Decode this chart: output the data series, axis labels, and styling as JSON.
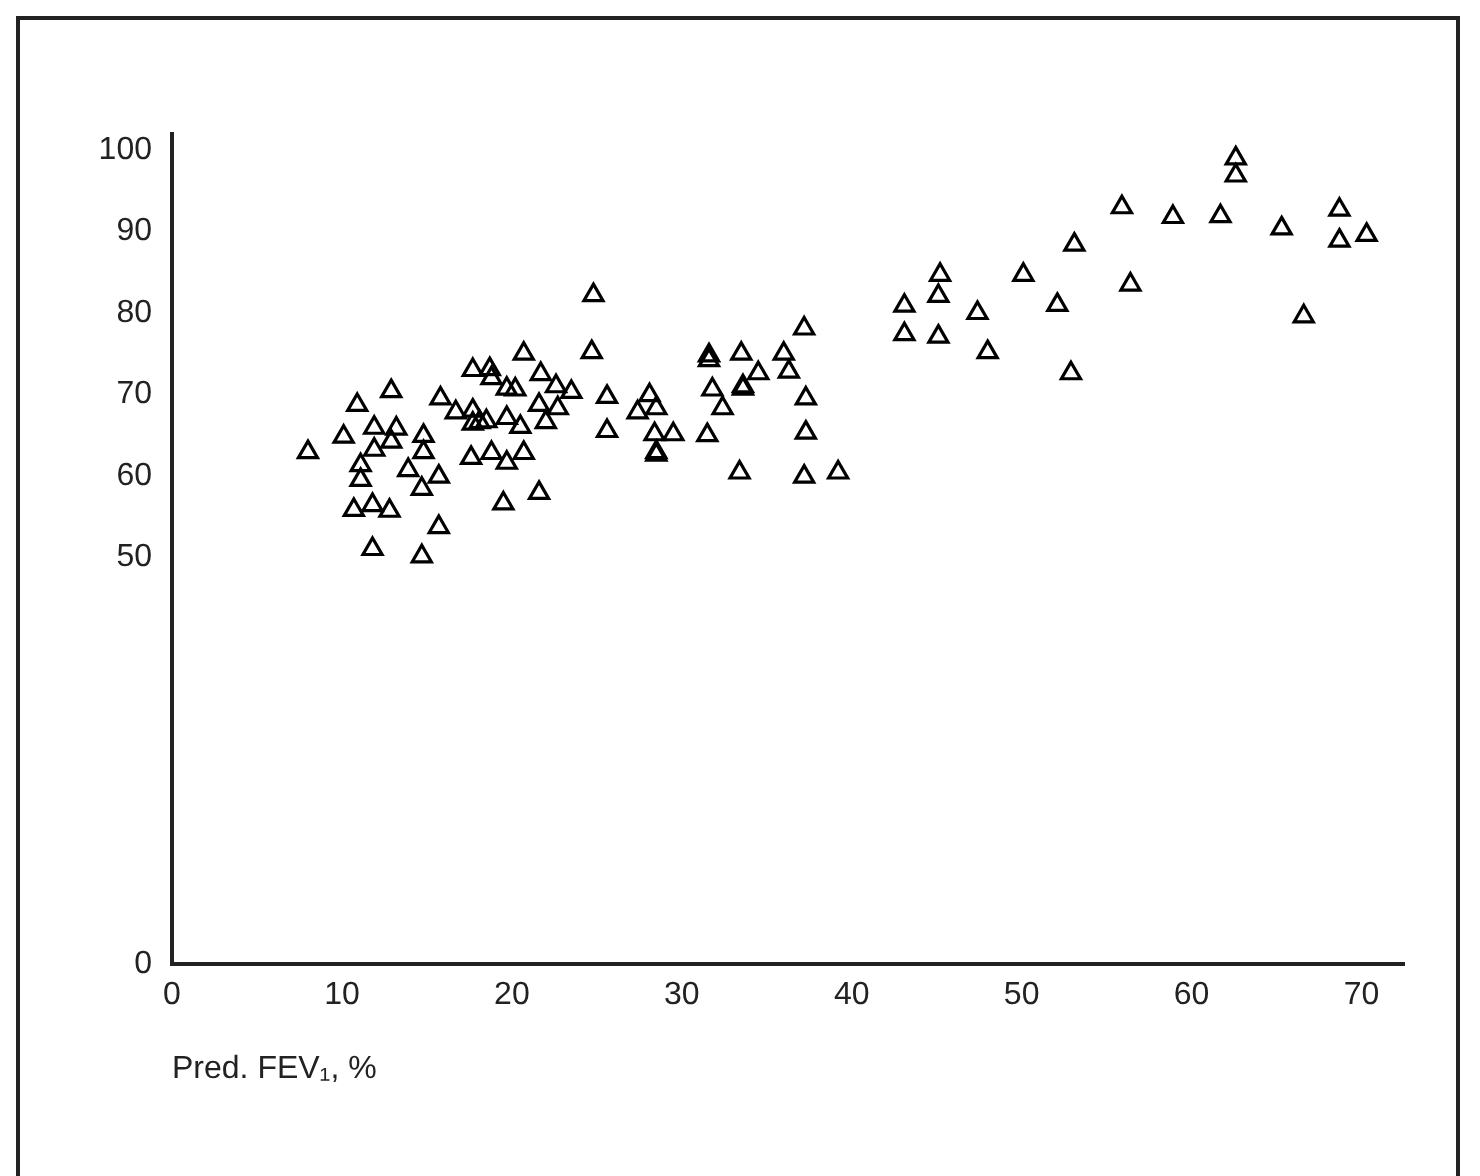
{
  "chart_data": {
    "type": "scatter",
    "xlabel": "Pred. FEV₁, %",
    "marker": "triangle",
    "grid": false,
    "legend": false,
    "xlim": [
      0,
      72.5
    ],
    "xticks": [
      0,
      10,
      20,
      30,
      40,
      50,
      60,
      70
    ],
    "ylim": [
      0,
      102
    ],
    "yticks": [
      0,
      50,
      60,
      70,
      80,
      90,
      100
    ],
    "series": [
      {
        "color": "#000000",
        "x": [
          8.0,
          10.1,
          10.9,
          11.1,
          11.1,
          10.7,
          11.8,
          12.8,
          11.8,
          11.9,
          11.9,
          12.9,
          13.2,
          12.9,
          13.9,
          14.8,
          14.8,
          14.7,
          14.7,
          15.8,
          15.7,
          15.7,
          16.7,
          17.7,
          17.7,
          18.1,
          18.5,
          17.6,
          18.8,
          17.7,
          18.7,
          18.8,
          19.7,
          19.7,
          20.5,
          19.5,
          19.7,
          20.2,
          20.7,
          20.7,
          21.7,
          21.6,
          22.0,
          21.6,
          22.6,
          22.7,
          23.5,
          24.8,
          24.7,
          25.6,
          25.6,
          28.1,
          27.4,
          28.5,
          28.4,
          29.5,
          28.5,
          28.5,
          31.6,
          31.6,
          33.5,
          36.0,
          34.5,
          36.3,
          37.2,
          31.8,
          33.6,
          33.6,
          32.4,
          37.3,
          31.5,
          37.3,
          33.4,
          37.2,
          39.2,
          43.1,
          45.2,
          45.1,
          43.1,
          45.1,
          47.4,
          48.0,
          50.1,
          52.1,
          53.1,
          52.9,
          55.9,
          56.4,
          58.9,
          61.7,
          62.6,
          62.6,
          65.3,
          66.6,
          68.7,
          68.7,
          70.3
        ],
        "values": [
          62.9,
          64.8,
          68.7,
          61.3,
          59.5,
          55.8,
          56.4,
          55.7,
          51.0,
          65.9,
          63.2,
          70.4,
          65.8,
          64.2,
          60.7,
          64.9,
          62.9,
          58.4,
          50.1,
          69.5,
          59.9,
          53.7,
          67.8,
          68.0,
          66.4,
          66.6,
          66.7,
          62.2,
          62.8,
          73.0,
          73.1,
          72.0,
          67.1,
          61.6,
          66.0,
          56.6,
          70.7,
          70.6,
          75.0,
          62.8,
          72.5,
          68.7,
          66.6,
          57.9,
          71.0,
          68.3,
          70.3,
          82.2,
          75.2,
          69.7,
          65.5,
          69.9,
          67.8,
          68.3,
          65.1,
          65.1,
          62.9,
          62.6,
          74.8,
          74.2,
          75.0,
          75.0,
          72.6,
          72.8,
          78.1,
          70.6,
          71.0,
          70.7,
          68.3,
          69.5,
          65.0,
          65.3,
          60.4,
          59.9,
          60.4,
          80.9,
          84.7,
          82.1,
          77.4,
          77.1,
          80.0,
          75.2,
          84.7,
          81.0,
          88.4,
          72.6,
          93.0,
          83.5,
          91.8,
          91.9,
          99.0,
          96.9,
          90.4,
          79.6,
          92.7,
          88.9,
          89.6
        ]
      }
    ]
  }
}
